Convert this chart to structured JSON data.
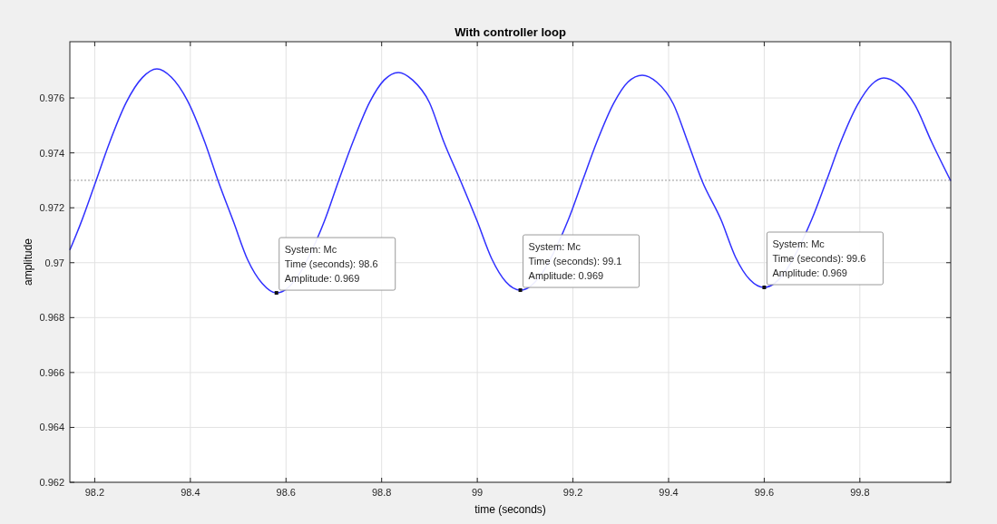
{
  "chart_data": {
    "type": "line",
    "title": "With controller loop",
    "xlabel": "time (seconds)",
    "ylabel": "amplitude",
    "xlim": [
      98.148,
      99.99
    ],
    "ylim": [
      0.962,
      0.97805
    ],
    "xticks": [
      98.2,
      98.4,
      98.6,
      98.8,
      99,
      99.2,
      99.4,
      99.6,
      99.8
    ],
    "yticks": [
      0.962,
      0.964,
      0.966,
      0.968,
      0.97,
      0.972,
      0.974,
      0.976
    ],
    "grid": true,
    "line_style": "solid",
    "marker": "none",
    "ref_lines": [
      {
        "axis": "y",
        "value": 0.973,
        "line_style": "dotted",
        "color": "#999999"
      }
    ],
    "annotations": [
      {
        "text": "System: Mc\nTime (seconds): 98.6\nAmplitude: 0.969",
        "x": 98.58,
        "y": 0.9689
      },
      {
        "text": "System: Mc\nTime (seconds): 99.1\nAmplitude: 0.969",
        "x": 99.09,
        "y": 0.969
      },
      {
        "text": "System: Mc\nTime (seconds): 99.6\nAmplitude: 0.969",
        "x": 99.6,
        "y": 0.9691
      }
    ],
    "series": [
      {
        "color": "#3030ff",
        "x": [
          98.148,
          98.17,
          98.2,
          98.23,
          98.266,
          98.3,
          98.33,
          98.36,
          98.394,
          98.43,
          98.458,
          98.49,
          98.52,
          98.55,
          98.58,
          98.68,
          98.71,
          98.74,
          98.775,
          98.805,
          98.835,
          98.865,
          98.9,
          98.93,
          98.965,
          99.0,
          99.03,
          99.06,
          99.09,
          99.19,
          99.22,
          99.25,
          99.285,
          99.315,
          99.345,
          99.375,
          99.41,
          99.44,
          99.47,
          99.51,
          99.54,
          99.57,
          99.6,
          99.7,
          99.73,
          99.76,
          99.795,
          99.825,
          99.85,
          99.88,
          99.915,
          99.95,
          99.99
        ],
        "values": [
          0.97046,
          0.9714,
          0.97285,
          0.97433,
          0.97584,
          0.97675,
          0.97706,
          0.97676,
          0.9759,
          0.9744,
          0.97298,
          0.9715,
          0.9701,
          0.96925,
          0.9689,
          0.9715,
          0.97298,
          0.9744,
          0.97585,
          0.97665,
          0.97693,
          0.97665,
          0.97583,
          0.9744,
          0.97298,
          0.9715,
          0.97015,
          0.9693,
          0.969,
          0.97155,
          0.97298,
          0.9744,
          0.9758,
          0.97658,
          0.97683,
          0.97658,
          0.97578,
          0.9744,
          0.97298,
          0.97155,
          0.9702,
          0.96938,
          0.9691,
          0.9716,
          0.97298,
          0.9744,
          0.97575,
          0.9765,
          0.97673,
          0.9765,
          0.97575,
          0.9744,
          0.97298
        ]
      }
    ]
  }
}
